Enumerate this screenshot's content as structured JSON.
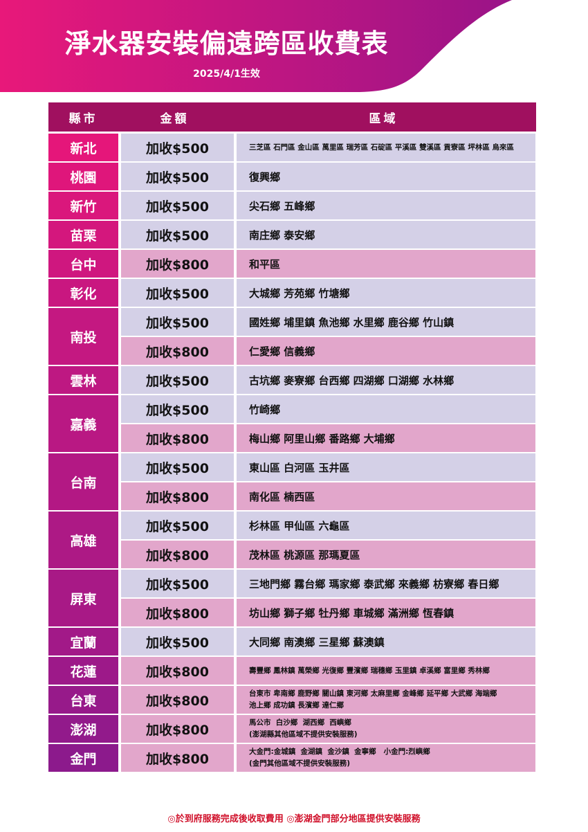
{
  "header": {
    "title": "淨水器安裝偏遠跨區收費表",
    "subtitle": "2025/4/1生效",
    "colors": {
      "banner_left": "#e8187a",
      "banner_right": "#9a1488"
    }
  },
  "table": {
    "columns": [
      "縣市",
      "金額",
      "區域"
    ],
    "colors": {
      "header": "#a0105f",
      "county_top": "#e5167a",
      "county_bottom": "#8c1a8c",
      "fee_500": "#d4d0e7",
      "fee_800": "#e2a6cb"
    },
    "rows": [
      {
        "county": "新北",
        "entries": [
          {
            "fee": "加收$500",
            "areas": [
              "三芝區 石門區 金山區 萬里區 瑞芳區 石碇區 平溪區 雙溪區 貢寮區 坪林區 烏來區"
            ],
            "small": true
          }
        ]
      },
      {
        "county": "桃園",
        "entries": [
          {
            "fee": "加收$500",
            "areas": [
              "復興鄉"
            ]
          }
        ]
      },
      {
        "county": "新竹",
        "entries": [
          {
            "fee": "加收$500",
            "areas": [
              "尖石鄉 五峰鄉"
            ]
          }
        ]
      },
      {
        "county": "苗栗",
        "entries": [
          {
            "fee": "加收$500",
            "areas": [
              "南庄鄉 泰安鄉"
            ]
          }
        ]
      },
      {
        "county": "台中",
        "entries": [
          {
            "fee": "加收$800",
            "areas": [
              "和平區"
            ]
          }
        ]
      },
      {
        "county": "彰化",
        "entries": [
          {
            "fee": "加收$500",
            "areas": [
              "大城鄉 芳苑鄉 竹塘鄉"
            ]
          }
        ]
      },
      {
        "county": "南投",
        "entries": [
          {
            "fee": "加收$500",
            "areas": [
              "國姓鄉 埔里鎮 魚池鄉 水里鄉 鹿谷鄉 竹山鎮"
            ]
          },
          {
            "fee": "加收$800",
            "areas": [
              "仁愛鄉 信義鄉"
            ]
          }
        ]
      },
      {
        "county": "雲林",
        "entries": [
          {
            "fee": "加收$500",
            "areas": [
              "古坑鄉 麥寮鄉 台西鄉 四湖鄉 口湖鄉 水林鄉"
            ]
          }
        ]
      },
      {
        "county": "嘉義",
        "entries": [
          {
            "fee": "加收$500",
            "areas": [
              "竹崎鄉"
            ]
          },
          {
            "fee": "加收$800",
            "areas": [
              "梅山鄉 阿里山鄉 番路鄉 大埔鄉"
            ]
          }
        ]
      },
      {
        "county": "台南",
        "entries": [
          {
            "fee": "加收$500",
            "areas": [
              "東山區 白河區 玉井區"
            ]
          },
          {
            "fee": "加收$800",
            "areas": [
              "南化區 楠西區"
            ]
          }
        ]
      },
      {
        "county": "高雄",
        "entries": [
          {
            "fee": "加收$500",
            "areas": [
              "杉林區 甲仙區 六龜區"
            ]
          },
          {
            "fee": "加收$800",
            "areas": [
              "茂林區 桃源區 那瑪夏區"
            ]
          }
        ]
      },
      {
        "county": "屏東",
        "entries": [
          {
            "fee": "加收$500",
            "areas": [
              "三地門鄉 霧台鄉 瑪家鄉 泰武鄉 來義鄉 枋寮鄉 春日鄉"
            ]
          },
          {
            "fee": "加收$800",
            "areas": [
              "坊山鄉 獅子鄉 牡丹鄉 車城鄉 滿洲鄉 恆春鎮"
            ]
          }
        ]
      },
      {
        "county": "宜蘭",
        "entries": [
          {
            "fee": "加收$500",
            "areas": [
              "大同鄉 南澳鄉 三星鄉 蘇澳鎮"
            ]
          }
        ]
      },
      {
        "county": "花蓮",
        "entries": [
          {
            "fee": "加收$800",
            "areas": [
              "壽豐鄉 鳳林鎮 萬榮鄉 光復鄉 豐濱鄉 瑞穗鄉 玉里鎮 卓溪鄉 富里鄉 秀林鄉"
            ],
            "small": true
          }
        ]
      },
      {
        "county": "台東",
        "entries": [
          {
            "fee": "加收$800",
            "areas": [
              "台東市 卑南鄉 鹿野鄉 關山鎮 東河鄉 太麻里鄉 金峰鄉 延平鄉 大武鄉 海端鄉",
              "池上鄉 成功鎮 長濱鄉 達仁鄉"
            ],
            "small": true
          }
        ]
      },
      {
        "county": "澎湖",
        "entries": [
          {
            "fee": "加收$800",
            "areas": [
              "馬公市  白沙鄉  湖西鄉  西嶼鄉",
              "(澎湖縣其他區域不提供安裝服務)"
            ],
            "small": true
          }
        ]
      },
      {
        "county": "金門",
        "entries": [
          {
            "fee": "加收$800",
            "areas": [
              "大金門:金城鎮  金湖鎮  金沙鎮  金寧鄉   小金門:烈嶼鄉",
              "(金門其他區域不提供安裝服務)"
            ],
            "small": true
          }
        ]
      }
    ]
  },
  "footer": {
    "note": "◎於到府服務完成後收取費用 ◎澎湖金門部分地區提供安裝服務"
  }
}
